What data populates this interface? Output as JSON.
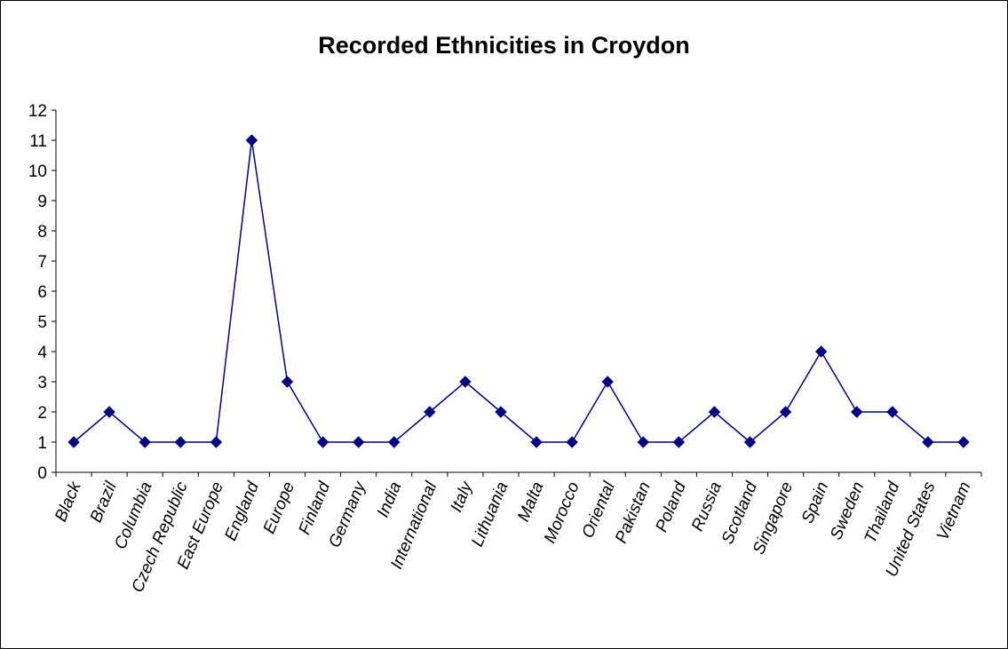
{
  "chart_data": {
    "type": "line",
    "title": "Recorded Ethnicities in Croydon",
    "xlabel": "",
    "ylabel": "",
    "ylim": [
      0,
      12
    ],
    "yticks": [
      "0",
      "1",
      "2",
      "3",
      "4",
      "5",
      "6",
      "7",
      "8",
      "9",
      "10",
      "11",
      "12"
    ],
    "grid": false,
    "legend": false,
    "categories": [
      "Black",
      "Brazil",
      "Columbia",
      "Czech Republic",
      "East Europe",
      "England",
      "Europe",
      "Finland",
      "Germany",
      "India",
      "International",
      "Italy",
      "Lithuania",
      "Malta",
      "Morocco",
      "Oriental",
      "Pakistan",
      "Poland",
      "Russia",
      "Scotland",
      "Singapore",
      "Spain",
      "Sweden",
      "Thailand",
      "United States",
      "Vietnam"
    ],
    "series": [
      {
        "values": [
          1,
          2,
          1,
          1,
          1,
          11,
          3,
          1,
          1,
          1,
          2,
          3,
          2,
          1,
          1,
          3,
          1,
          1,
          2,
          1,
          2,
          4,
          2,
          2,
          1,
          1
        ],
        "color": "#000080",
        "marker": "diamond"
      }
    ]
  }
}
